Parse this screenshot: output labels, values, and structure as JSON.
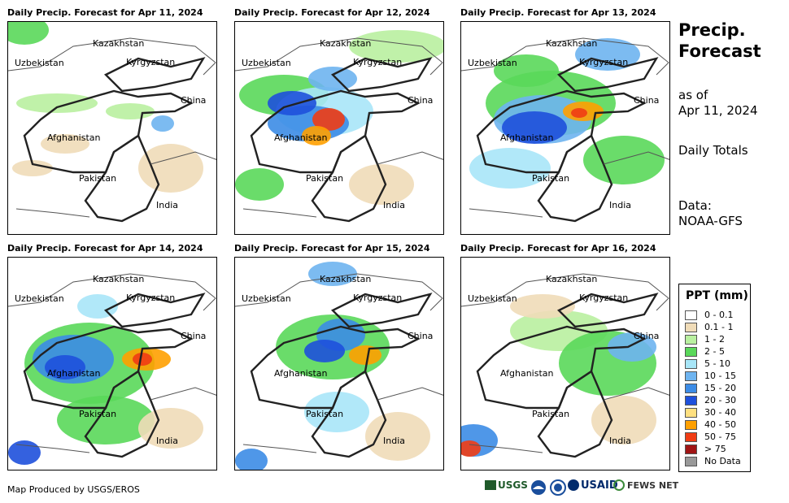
{
  "panels": [
    {
      "title": "Daily Precip. Forecast for Apr 11, 2024"
    },
    {
      "title": "Daily Precip. Forecast for Apr 12, 2024"
    },
    {
      "title": "Daily Precip. Forecast for Apr 13, 2024"
    },
    {
      "title": "Daily Precip. Forecast for Apr 14, 2024"
    },
    {
      "title": "Daily Precip. Forecast for Apr 15, 2024"
    },
    {
      "title": "Daily Precip. Forecast for Apr 16, 2024"
    }
  ],
  "map_labels": {
    "kazakhstan": "Kazakhstan",
    "uzbekistan": "Uzbekistan",
    "kyrgyzstan": "Kyrgyzstan",
    "china": "China",
    "afghanistan": "Afghanistan",
    "pakistan": "Pakistan",
    "india": "India"
  },
  "sidebar": {
    "title_line1": "Precip.",
    "title_line2": "Forecast",
    "asof_line1": "as of",
    "asof_line2": "Apr 11, 2024",
    "totals": "Daily Totals",
    "data_line1": "Data:",
    "data_line2": "NOAA-GFS"
  },
  "legend": {
    "title": "PPT (mm)",
    "items": [
      {
        "label": "0 - 0.1",
        "color": "#ffffff"
      },
      {
        "label": "0.1 - 1",
        "color": "#f0dcb8"
      },
      {
        "label": "1 - 2",
        "color": "#b9f0a0"
      },
      {
        "label": "2 - 5",
        "color": "#5ad85a"
      },
      {
        "label": "5 - 10",
        "color": "#a8e6f8"
      },
      {
        "label": "10 - 15",
        "color": "#6eb4f0"
      },
      {
        "label": "15 - 20",
        "color": "#3c8ce6"
      },
      {
        "label": "20 - 30",
        "color": "#1e50dc"
      },
      {
        "label": "30 - 40",
        "color": "#ffe080"
      },
      {
        "label": "40 - 50",
        "color": "#ffa000"
      },
      {
        "label": "50 - 75",
        "color": "#f03c14"
      },
      {
        "label": "> 75",
        "color": "#a01414"
      },
      {
        "label": "No Data",
        "color": "#999999"
      }
    ]
  },
  "credit": "Map Produced by USGS/EROS",
  "logos": {
    "usgs": "USGS",
    "usaid": "USAID",
    "fewsnet": "FEWS NET"
  }
}
